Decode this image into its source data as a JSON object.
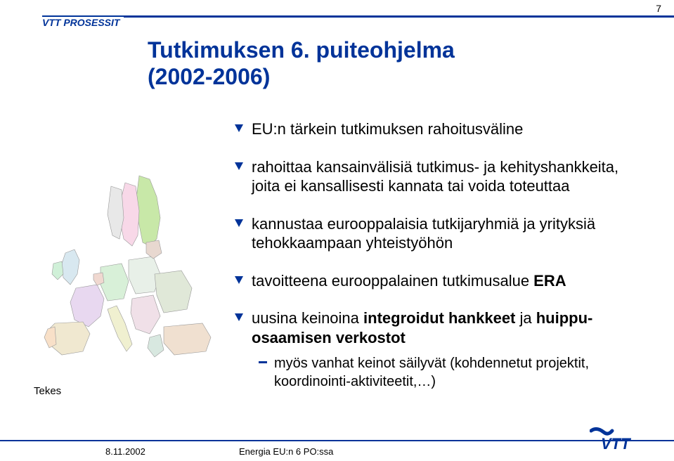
{
  "page_number": "7",
  "header_label": "VTT PROSESSIT",
  "title_line1": "Tutkimuksen 6. puiteohjelma",
  "title_line2": "(2002-2006)",
  "bullets": [
    {
      "text": "EU:n tärkein tutkimuksen rahoitusväline"
    },
    {
      "text": "rahoittaa kansainvälisiä tutkimus- ja kehityshankkeita, joita ei kansallisesti kannata tai voida toteuttaa"
    },
    {
      "text": "kannustaa eurooppalaisia tutkijaryhmiä ja yrityksiä tehokkaampaan yhteistyöhön"
    },
    {
      "html": "tavoitteena eurooppalainen tutkimusalue <b>ERA</b>"
    },
    {
      "html": "uusina keinoina <b>integroidut hankkeet</b> ja <b>huippu-osaamisen verkostot</b>"
    }
  ],
  "sub_bullet": "myös vanhat keinot säilyvät (kohdennetut projektit, koordinointi-aktiviteetit,…)",
  "source_label": "Tekes",
  "footer_date": "8.11.2002",
  "footer_center": "Energia EU:n 6 PO:ssa",
  "accent_color": "#003399",
  "map_colors": {
    "base": "#e8e4d8",
    "finland": "#c8e8a8",
    "sweden": "#f8d8e8",
    "norway": "#e8e8e8",
    "uk": "#d8e8f0",
    "france": "#e8d8f0",
    "spain": "#f0e8d0",
    "germany": "#d8f0d8",
    "italy": "#f0f0d0",
    "poland": "#e8f0e8",
    "turkey": "#f0e0d0"
  }
}
